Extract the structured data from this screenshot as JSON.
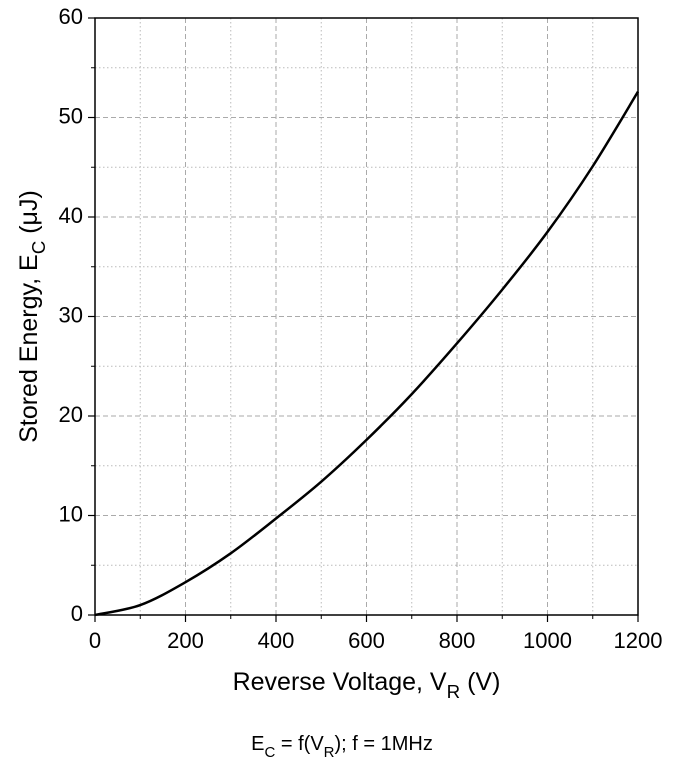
{
  "chart_data": {
    "type": "line",
    "x_label": [
      "Reverse Voltage, V",
      "R",
      " (V)"
    ],
    "y_label": [
      "Stored Energy, E",
      "C",
      " (μJ)"
    ],
    "caption": [
      "E",
      "C",
      " = f(V",
      "R",
      "); f = 1MHz"
    ],
    "x": [
      0,
      100,
      200,
      300,
      400,
      500,
      600,
      700,
      800,
      900,
      1000,
      1100,
      1200
    ],
    "series": [
      {
        "color": "#000000",
        "values": [
          0,
          1.0,
          3.3,
          6.2,
          9.7,
          13.4,
          17.6,
          22.2,
          27.3,
          32.7,
          38.5,
          45.1,
          52.6
        ]
      }
    ],
    "xlim": [
      0,
      1200
    ],
    "xticks": [
      0,
      200,
      400,
      600,
      800,
      1000,
      1200
    ],
    "xminorticks": [
      100,
      300,
      500,
      700,
      900,
      1100
    ],
    "ylim": [
      0,
      60
    ],
    "yticks": [
      0,
      10,
      20,
      30,
      40,
      50,
      60
    ],
    "yminorticks": [
      5,
      15,
      25,
      35,
      45,
      55
    ],
    "grid": true
  }
}
